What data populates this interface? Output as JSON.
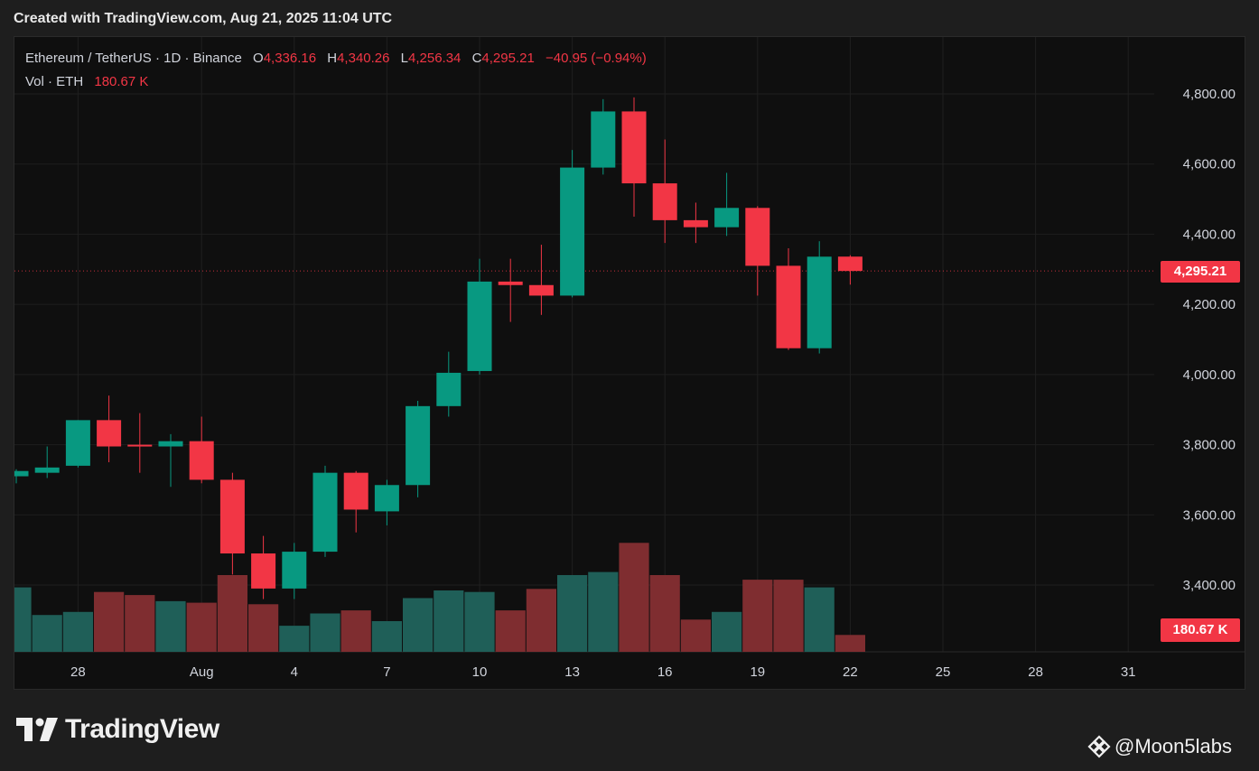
{
  "header": {
    "created_with": "Created with TradingView.com, Aug 21, 2025 11:04 UTC"
  },
  "legend": {
    "symbol": "Ethereum / TetherUS · 1D · Binance",
    "o_label": "O",
    "o_value": "4,336.16",
    "h_label": "H",
    "h_value": "4,340.26",
    "l_label": "L",
    "l_value": "4,256.34",
    "c_label": "C",
    "c_value": "4,295.21",
    "change": "−40.95 (−0.94%)",
    "vol_label": "Vol · ETH",
    "vol_value": "180.67 K"
  },
  "price_tag": "4,295.21",
  "volume_tag": "180.67 K",
  "brand": {
    "name": "TradingView"
  },
  "watermark": {
    "text": "@Moon5labs"
  },
  "colors": {
    "up": "#089981",
    "down": "#f23645",
    "up_vol": "#1f5f58",
    "down_vol": "#7f2d30",
    "background": "#0f0f0f"
  },
  "chart_data": {
    "type": "candlestick",
    "y_ticks": [
      {
        "value": 4800,
        "label": "4,800.00"
      },
      {
        "value": 4600,
        "label": "4,600.00"
      },
      {
        "value": 4400,
        "label": "4,400.00"
      },
      {
        "value": 4200,
        "label": "4,200.00"
      },
      {
        "value": 4000,
        "label": "4,000.00"
      },
      {
        "value": 3800,
        "label": "3,800.00"
      },
      {
        "value": 3600,
        "label": "3,600.00"
      },
      {
        "value": 3400,
        "label": "3,400.00"
      }
    ],
    "x_ticks": [
      {
        "day": 2,
        "label": "28"
      },
      {
        "day": 6,
        "label": "Aug"
      },
      {
        "day": 9,
        "label": "4"
      },
      {
        "day": 12,
        "label": "7"
      },
      {
        "day": 15,
        "label": "10"
      },
      {
        "day": 18,
        "label": "13"
      },
      {
        "day": 21,
        "label": "16"
      },
      {
        "day": 24,
        "label": "19"
      },
      {
        "day": 27,
        "label": "22"
      },
      {
        "day": 30,
        "label": "25"
      },
      {
        "day": 33,
        "label": "28"
      },
      {
        "day": 36,
        "label": "31"
      }
    ],
    "candles": [
      {
        "date": "2025-07-25",
        "o": 3710,
        "h": 3730,
        "l": 3690,
        "c": 3725,
        "vol": 0.42
      },
      {
        "date": "2025-07-26",
        "o": 3720,
        "h": 3795,
        "l": 3705,
        "c": 3735,
        "vol": 0.24
      },
      {
        "date": "2025-07-27",
        "o": 3740,
        "h": 3870,
        "l": 3735,
        "c": 3870,
        "vol": 0.26
      },
      {
        "date": "2025-07-28",
        "o": 3870,
        "h": 3940,
        "l": 3750,
        "c": 3795,
        "vol": 0.39
      },
      {
        "date": "2025-07-29",
        "o": 3800,
        "h": 3890,
        "l": 3720,
        "c": 3795,
        "vol": 0.37
      },
      {
        "date": "2025-07-30",
        "o": 3795,
        "h": 3830,
        "l": 3680,
        "c": 3810,
        "vol": 0.33
      },
      {
        "date": "2025-07-31",
        "o": 3810,
        "h": 3880,
        "l": 3690,
        "c": 3700,
        "vol": 0.32
      },
      {
        "date": "2025-08-01",
        "o": 3700,
        "h": 3720,
        "l": 3430,
        "c": 3490,
        "vol": 0.5
      },
      {
        "date": "2025-08-02",
        "o": 3490,
        "h": 3540,
        "l": 3360,
        "c": 3390,
        "vol": 0.31
      },
      {
        "date": "2025-08-03",
        "o": 3390,
        "h": 3520,
        "l": 3360,
        "c": 3495,
        "vol": 0.17
      },
      {
        "date": "2025-08-04",
        "o": 3495,
        "h": 3740,
        "l": 3480,
        "c": 3720,
        "vol": 0.25
      },
      {
        "date": "2025-08-05",
        "o": 3720,
        "h": 3725,
        "l": 3550,
        "c": 3615,
        "vol": 0.27
      },
      {
        "date": "2025-08-06",
        "o": 3610,
        "h": 3700,
        "l": 3570,
        "c": 3685,
        "vol": 0.2
      },
      {
        "date": "2025-08-07",
        "o": 3685,
        "h": 3925,
        "l": 3650,
        "c": 3910,
        "vol": 0.35
      },
      {
        "date": "2025-08-08",
        "o": 3910,
        "h": 4065,
        "l": 3880,
        "c": 4005,
        "vol": 0.4
      },
      {
        "date": "2025-08-09",
        "o": 4010,
        "h": 4330,
        "l": 4000,
        "c": 4265,
        "vol": 0.39
      },
      {
        "date": "2025-08-10",
        "o": 4265,
        "h": 4330,
        "l": 4150,
        "c": 4255,
        "vol": 0.27
      },
      {
        "date": "2025-08-11",
        "o": 4255,
        "h": 4370,
        "l": 4170,
        "c": 4225,
        "vol": 0.41
      },
      {
        "date": "2025-08-12",
        "o": 4225,
        "h": 4640,
        "l": 4220,
        "c": 4590,
        "vol": 0.5
      },
      {
        "date": "2025-08-13",
        "o": 4590,
        "h": 4785,
        "l": 4570,
        "c": 4750,
        "vol": 0.52
      },
      {
        "date": "2025-08-14",
        "o": 4750,
        "h": 4790,
        "l": 4450,
        "c": 4545,
        "vol": 0.71
      },
      {
        "date": "2025-08-15",
        "o": 4545,
        "h": 4670,
        "l": 4375,
        "c": 4440,
        "vol": 0.5
      },
      {
        "date": "2025-08-16",
        "o": 4440,
        "h": 4490,
        "l": 4375,
        "c": 4420,
        "vol": 0.21
      },
      {
        "date": "2025-08-17",
        "o": 4420,
        "h": 4575,
        "l": 4395,
        "c": 4475,
        "vol": 0.26
      },
      {
        "date": "2025-08-18",
        "o": 4475,
        "h": 4480,
        "l": 4225,
        "c": 4310,
        "vol": 0.47
      },
      {
        "date": "2025-08-19",
        "o": 4310,
        "h": 4360,
        "l": 4070,
        "c": 4075,
        "vol": 0.47
      },
      {
        "date": "2025-08-20",
        "o": 4075,
        "h": 4380,
        "l": 4060,
        "c": 4336,
        "vol": 0.42
      },
      {
        "date": "2025-08-21",
        "o": 4336.16,
        "h": 4340.26,
        "l": 4256.34,
        "c": 4295.21,
        "vol": 0.11
      }
    ],
    "last_price": 4295.21,
    "last_volume": "180.67 K"
  }
}
